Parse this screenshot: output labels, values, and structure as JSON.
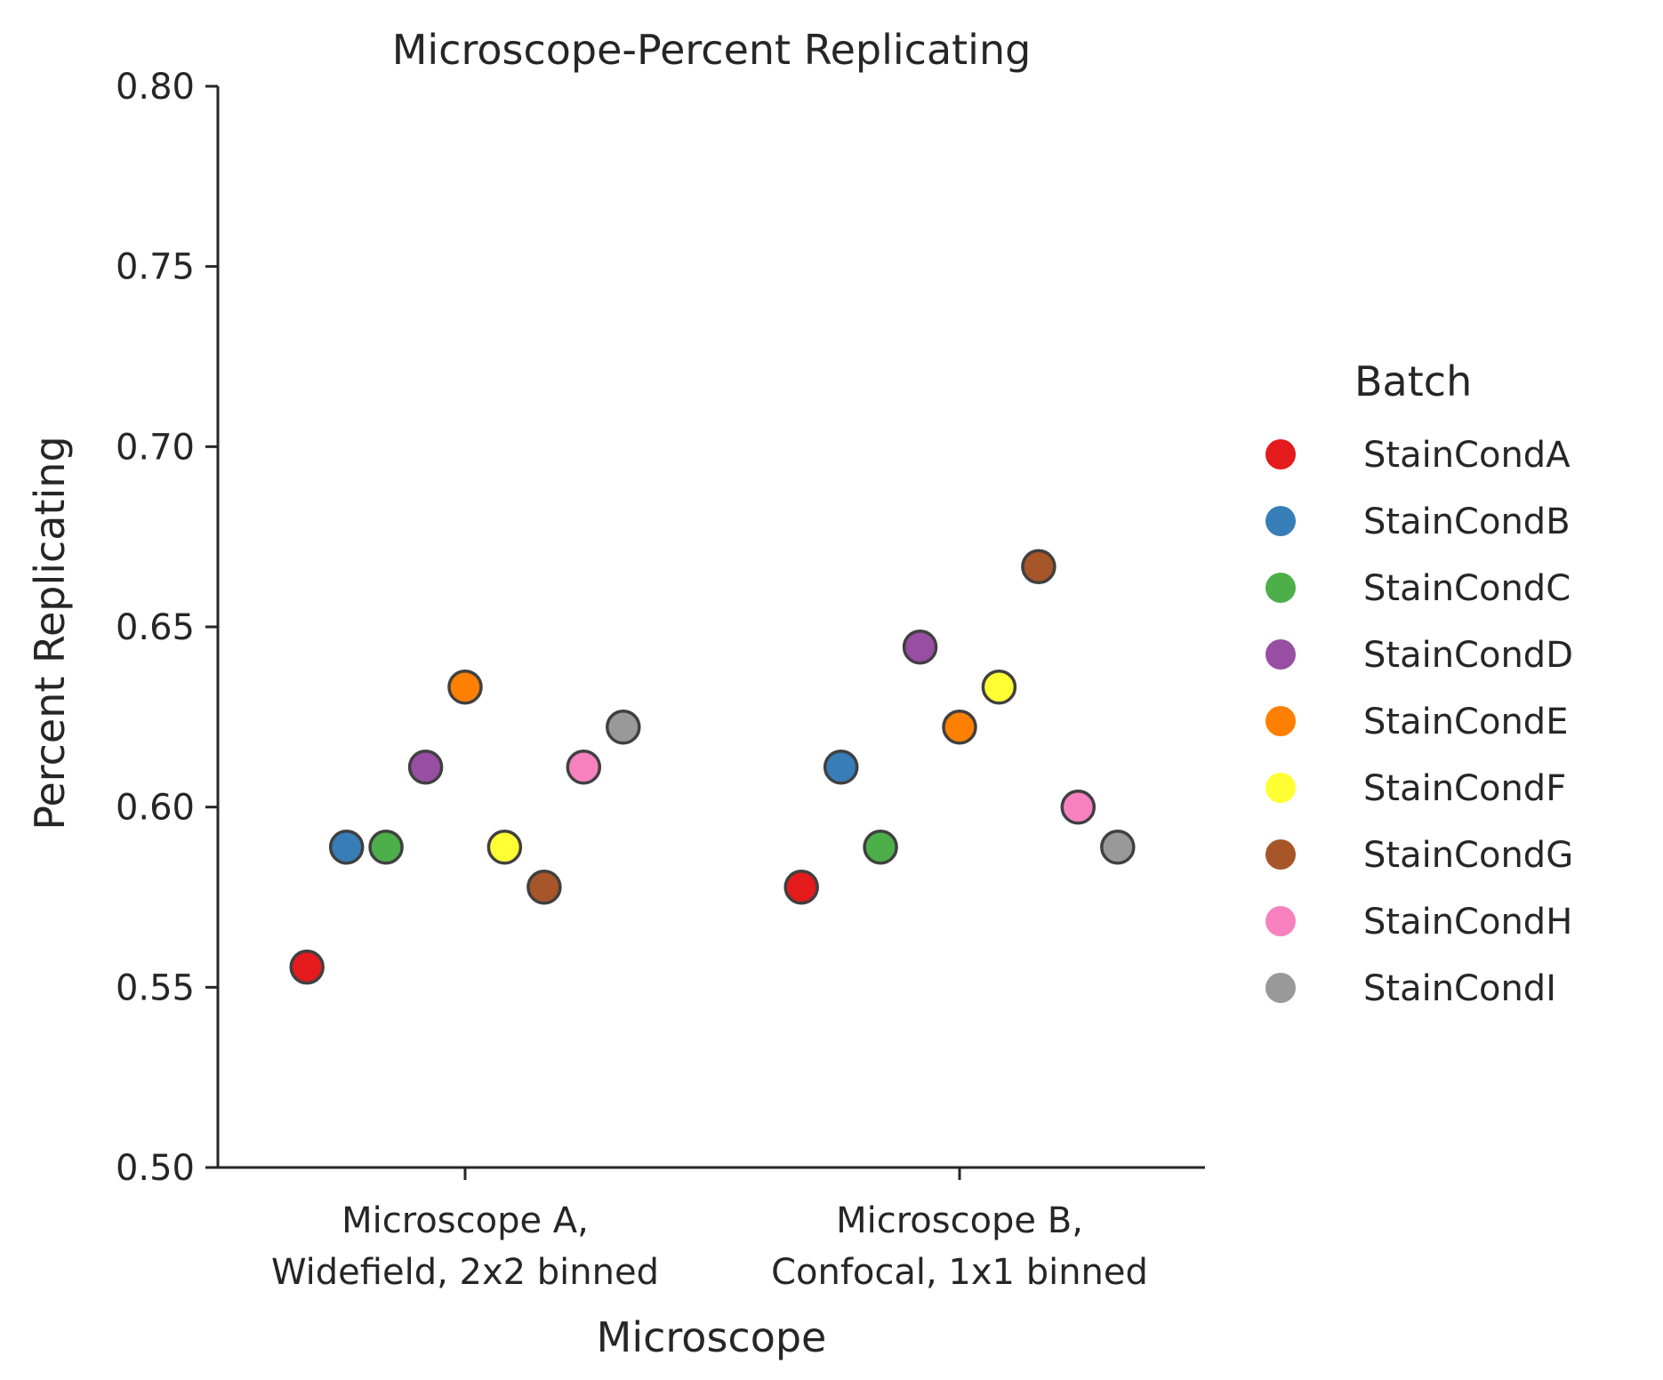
{
  "chart_data": {
    "type": "scatter",
    "title": "Microscope-Percent Replicating",
    "xlabel": "Microscope",
    "ylabel": "Percent Replicating",
    "ylim": [
      0.5,
      0.8
    ],
    "y_ticks": [
      "0.50",
      "0.55",
      "0.60",
      "0.65",
      "0.70",
      "0.75",
      "0.80"
    ],
    "categories": [
      [
        "Microscope A,",
        "Widefield, 2x2 binned"
      ],
      [
        "Microscope B,",
        "Confocal, 1x1 binned"
      ]
    ],
    "grid": false,
    "legend": {
      "title": "Batch",
      "position": "right"
    },
    "series": [
      {
        "name": "StainCondA",
        "color": "#e41a1c",
        "values": [
          0.5556,
          0.5778
        ]
      },
      {
        "name": "StainCondB",
        "color": "#377eb8",
        "values": [
          0.5889,
          0.6111
        ]
      },
      {
        "name": "StainCondC",
        "color": "#4daf4a",
        "values": [
          0.5889,
          0.5889
        ]
      },
      {
        "name": "StainCondD",
        "color": "#984ea3",
        "values": [
          0.6111,
          0.6444
        ]
      },
      {
        "name": "StainCondE",
        "color": "#ff7f00",
        "values": [
          0.6333,
          0.6222
        ]
      },
      {
        "name": "StainCondF",
        "color": "#ffff33",
        "values": [
          0.5889,
          0.6333
        ]
      },
      {
        "name": "StainCondG",
        "color": "#a65628",
        "values": [
          0.5778,
          0.6667
        ]
      },
      {
        "name": "StainCondH",
        "color": "#f781bf",
        "values": [
          0.6111,
          0.6
        ]
      },
      {
        "name": "StainCondI",
        "color": "#999999",
        "values": [
          0.6222,
          0.5889
        ]
      }
    ]
  }
}
